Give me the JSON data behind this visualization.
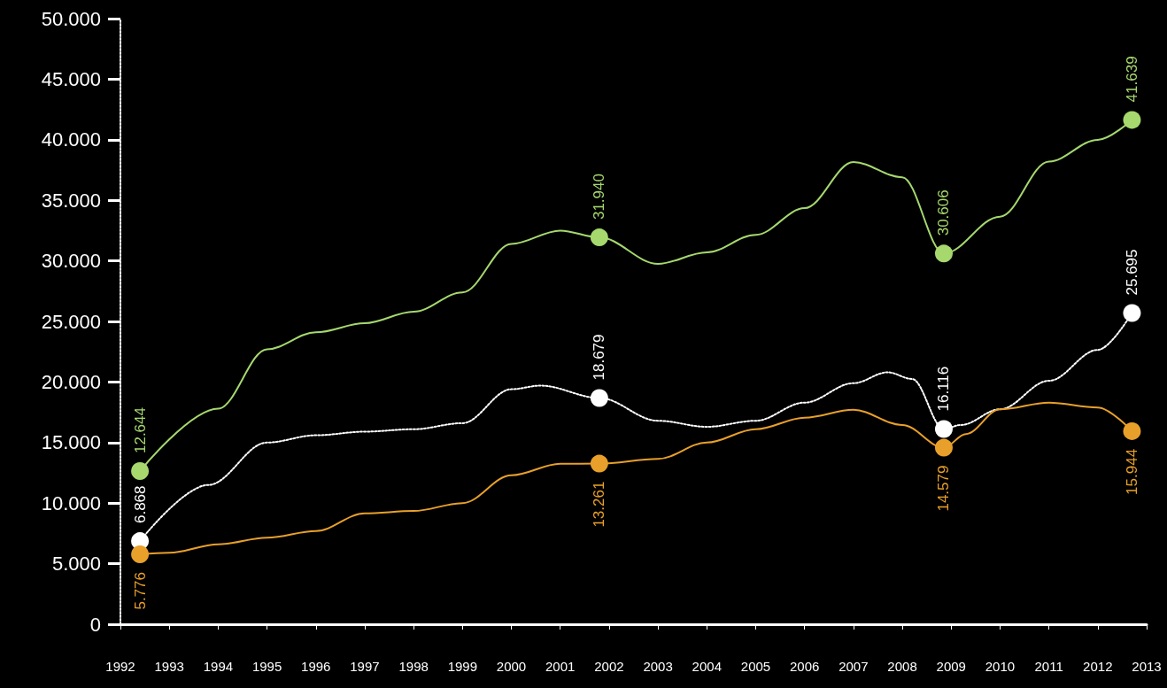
{
  "chart_data": {
    "type": "line",
    "xlim": [
      1992,
      2013
    ],
    "xticks": [
      1992,
      1993,
      1994,
      1995,
      1996,
      1997,
      1998,
      1999,
      2000,
      2001,
      2002,
      2003,
      2004,
      2005,
      2006,
      2007,
      2008,
      2009,
      2010,
      2011,
      2012,
      2013
    ],
    "ylim": [
      0,
      50000
    ],
    "yticks": [
      {
        "value": 0,
        "label": "0"
      },
      {
        "value": 5000,
        "label": "5.000"
      },
      {
        "value": 10000,
        "label": "10.000"
      },
      {
        "value": 15000,
        "label": "15.000"
      },
      {
        "value": 20000,
        "label": "20.000"
      },
      {
        "value": 25000,
        "label": "25.000"
      },
      {
        "value": 30000,
        "label": "30.000"
      },
      {
        "value": 35000,
        "label": "35.000"
      },
      {
        "value": 40000,
        "label": "40.000"
      },
      {
        "value": 45000,
        "label": "45.000"
      },
      {
        "value": 50000,
        "label": "50.000"
      }
    ],
    "grid": false,
    "series": [
      {
        "color": "#a6d86e",
        "line_style": "solid",
        "x": [
          1992.4,
          1994,
          1995,
          1996,
          1997,
          1998,
          1999,
          2000,
          2001,
          2001.8,
          2003,
          2004,
          2005,
          2006,
          2007,
          2008,
          2008.85,
          2010,
          2011,
          2012,
          2012.7
        ],
        "values": [
          12644,
          17800,
          22700,
          24100,
          24850,
          25800,
          27400,
          31400,
          32500,
          31940,
          29750,
          30700,
          32150,
          34350,
          38150,
          36900,
          30606,
          33650,
          38200,
          39990,
          41639
        ],
        "value_labels": [
          "12.644",
          null,
          null,
          null,
          null,
          null,
          null,
          null,
          null,
          "31.940",
          null,
          null,
          null,
          null,
          null,
          null,
          "30.606",
          null,
          null,
          null,
          "41.639"
        ]
      },
      {
        "color": "#ffffff",
        "line_style": "dotted",
        "x": [
          1992.4,
          1993.8,
          1995,
          1996,
          1997,
          1998,
          1999,
          2000,
          2000.6,
          2001.8,
          2003,
          2004,
          2005,
          2006,
          2007,
          2007.7,
          2008.2,
          2008.85,
          2009.2,
          2010,
          2011,
          2012,
          2012.7
        ],
        "values": [
          6868,
          11500,
          15000,
          15600,
          15900,
          16100,
          16600,
          19400,
          19700,
          18679,
          16800,
          16300,
          16800,
          18300,
          19900,
          20800,
          20250,
          16116,
          16450,
          17750,
          20100,
          22650,
          25695
        ],
        "value_labels": [
          "6.868",
          null,
          null,
          null,
          null,
          null,
          null,
          null,
          null,
          "18.679",
          null,
          null,
          null,
          null,
          null,
          null,
          null,
          "16.116",
          null,
          null,
          null,
          null,
          "25.695"
        ]
      },
      {
        "color": "#e8a02a",
        "line_style": "solid",
        "x": [
          1992.4,
          1993,
          1994,
          1995,
          1996,
          1997,
          1998,
          1999,
          2000,
          2001,
          2001.8,
          2003,
          2004,
          2005,
          2006,
          2007,
          2008,
          2008.85,
          2009.3,
          2010,
          2011,
          2012,
          2012.7
        ],
        "values": [
          5776,
          5900,
          6600,
          7150,
          7700,
          9150,
          9350,
          10000,
          12300,
          13250,
          13261,
          13650,
          15000,
          16100,
          17050,
          17700,
          16450,
          14579,
          15700,
          17750,
          18300,
          17900,
          15944
        ],
        "value_labels": [
          "5.776",
          null,
          null,
          null,
          null,
          null,
          null,
          null,
          null,
          null,
          "13.261",
          null,
          null,
          null,
          null,
          null,
          null,
          "14.579",
          null,
          null,
          null,
          null,
          "15.944"
        ]
      }
    ]
  }
}
